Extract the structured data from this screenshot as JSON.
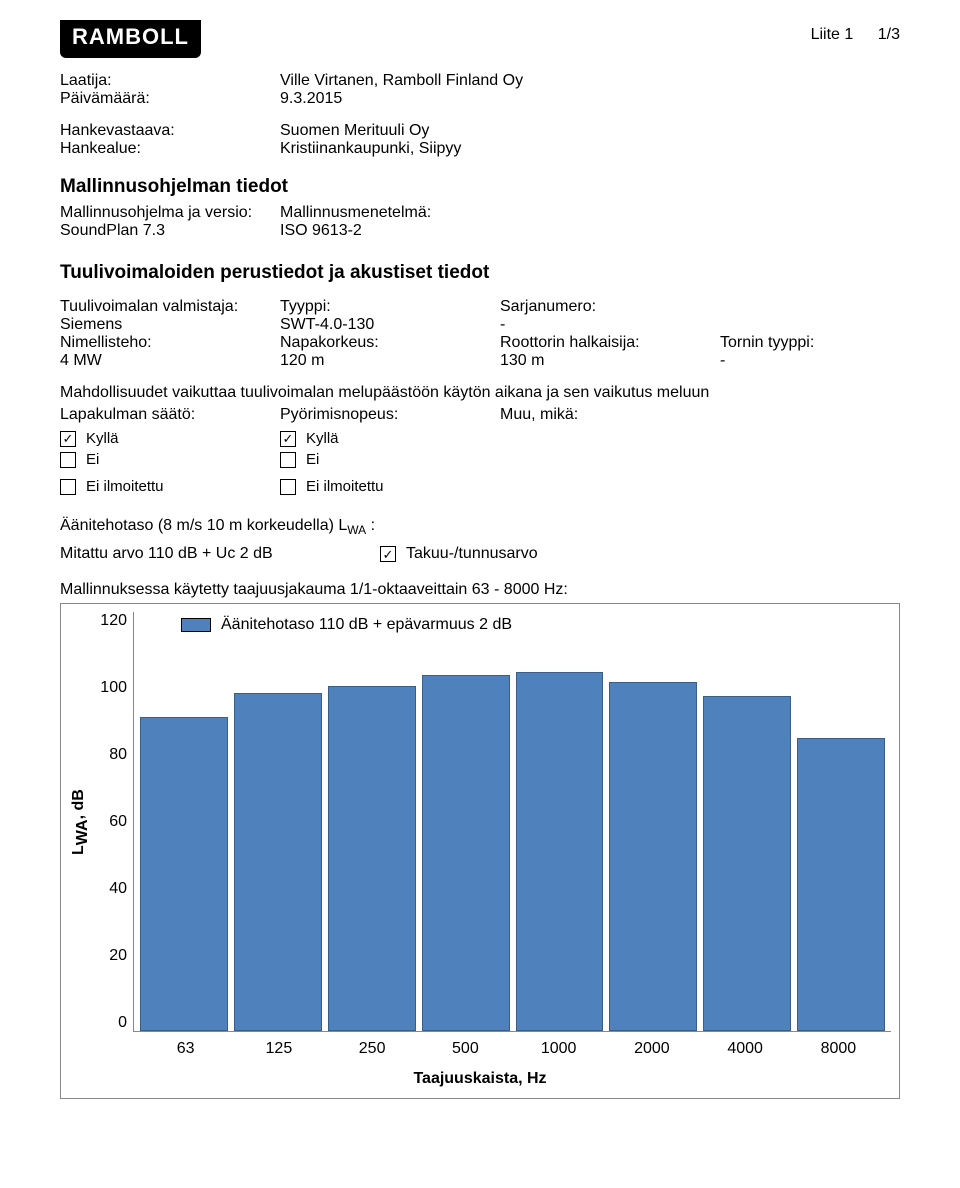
{
  "header": {
    "logo_text": "RAMBOLL",
    "attachment_label": "Liite 1",
    "page_indicator": "1/3"
  },
  "meta1": {
    "author_label": "Laatija:",
    "author_value": "Ville Virtanen, Ramboll Finland Oy",
    "date_label": "Päivämäärä:",
    "date_value": "9.3.2015"
  },
  "meta2": {
    "resp_label": "Hankevastaava:",
    "resp_value": "Suomen Merituuli Oy",
    "area_label": "Hankealue:",
    "area_value": "Kristiinankaupunki, Siipyy"
  },
  "model_section": {
    "title": "Mallinnusohjelman tiedot",
    "prog_label": "Mallinnusohjelma ja versio:",
    "prog_value": "SoundPlan 7.3",
    "method_label": "Mallinnusmenetelmä:",
    "method_value": "ISO 9613-2"
  },
  "turbine_section": {
    "title": "Tuulivoimaloiden perustiedot ja akustiset tiedot",
    "row1": {
      "c1l": "Tuulivoimalan valmistaja:",
      "c1v": "Siemens",
      "c2l": "Tyyppi:",
      "c2v": "SWT-4.0-130",
      "c3l": "Sarjanumero:",
      "c3v": "-"
    },
    "row2": {
      "c1l": "Nimellisteho:",
      "c1v": "4 MW",
      "c2l": "Napakorkeus:",
      "c2v": "120 m",
      "c3l": "Roottorin halkaisija:",
      "c3v": "130 m",
      "c4l": "Tornin tyyppi:",
      "c4v": "-"
    }
  },
  "possibilities": {
    "intro": "Mahdollisuudet vaikuttaa tuulivoimalan melupäästöön käytön aikana ja sen vaikutus meluun",
    "col1_label": "Lapakulman säätö:",
    "col2_label": "Pyörimisnopeus:",
    "col3_label": "Muu, mikä:",
    "opt_yes": "Kyllä",
    "opt_no": "Ei",
    "opt_na": "Ei ilmoitettu"
  },
  "sound_power": {
    "line1a": "Äänitehotaso (8 m/s 10 m korkeudella) L",
    "line1sub": "WA",
    "line1b": " :",
    "line2_left": "Mitattu arvo 110 dB + Uc 2 dB",
    "line2_check": "Takuu-/tunnusarvo"
  },
  "chart": {
    "title": "Mallinnuksessa käytetty taajuusjakauma 1/1-oktaaveittain 63 - 8000 Hz:",
    "type": "bar",
    "legend": "Äänitehotaso 110 dB + epävarmuus 2 dB",
    "categories": [
      "63",
      "125",
      "250",
      "500",
      "1000",
      "2000",
      "4000",
      "8000"
    ],
    "values": [
      90,
      97,
      99,
      102,
      103,
      100,
      96,
      84
    ],
    "ylim": [
      0,
      120
    ],
    "ytick_labels": [
      "120",
      "100",
      "80",
      "60",
      "40",
      "20",
      "0"
    ],
    "ylabel_a": "L",
    "ylabel_sub": "WA",
    "ylabel_b": ", dB",
    "xlabel": "Taajuuskaista, Hz",
    "bar_color": "#4f81bd",
    "bar_border": "#395e89",
    "border_color": "#888888",
    "background": "#ffffff"
  }
}
